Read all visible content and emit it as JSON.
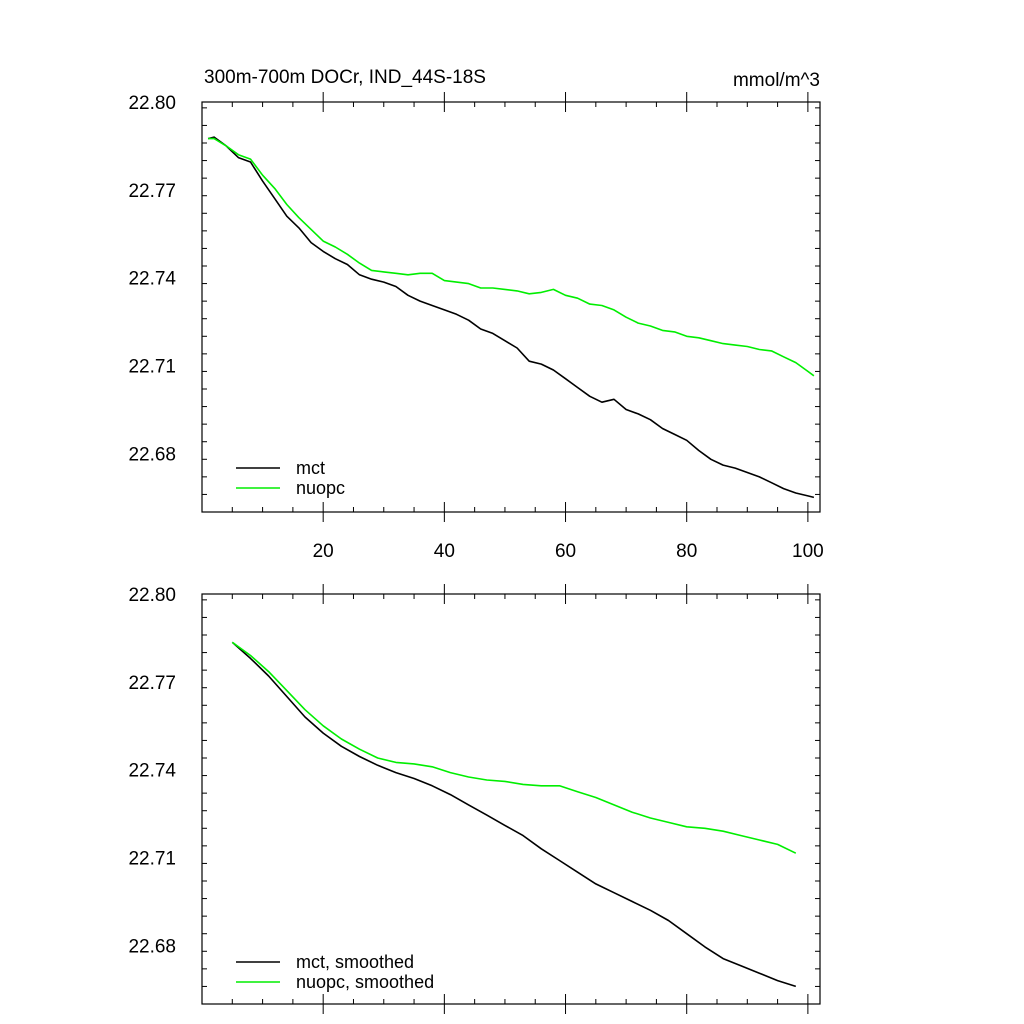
{
  "chart_data": [
    {
      "type": "line",
      "title": "300m-700m DOCr, IND_44S-18S",
      "units": "mmol/m^3",
      "xlim": [
        0,
        102
      ],
      "ylim": [
        22.66,
        22.8
      ],
      "xticks": [
        20,
        40,
        60,
        80,
        100
      ],
      "xtick_labels": [
        "20",
        "40",
        "60",
        "80",
        "100"
      ],
      "yticks": [
        22.68,
        22.71,
        22.74,
        22.77,
        22.8
      ],
      "ytick_labels": [
        "22.68",
        "22.71",
        "22.74",
        "22.77",
        "22.80"
      ],
      "legend_position": "bottom-left",
      "grid": false,
      "series": [
        {
          "name": "mct",
          "color": "#000000",
          "points": [
            [
              1,
              22.7875
            ],
            [
              2,
              22.788
            ],
            [
              4,
              22.785
            ],
            [
              6,
              22.781
            ],
            [
              8,
              22.7795
            ],
            [
              10,
              22.773
            ],
            [
              12,
              22.767
            ],
            [
              14,
              22.761
            ],
            [
              16,
              22.757
            ],
            [
              18,
              22.752
            ],
            [
              20,
              22.749
            ],
            [
              22,
              22.7465
            ],
            [
              24,
              22.7445
            ],
            [
              26,
              22.741
            ],
            [
              28,
              22.7395
            ],
            [
              30,
              22.7385
            ],
            [
              32,
              22.737
            ],
            [
              34,
              22.734
            ],
            [
              36,
              22.732
            ],
            [
              38,
              22.7305
            ],
            [
              40,
              22.729
            ],
            [
              42,
              22.7275
            ],
            [
              44,
              22.7255
            ],
            [
              46,
              22.7225
            ],
            [
              48,
              22.721
            ],
            [
              50,
              22.7185
            ],
            [
              52,
              22.716
            ],
            [
              54,
              22.7115
            ],
            [
              56,
              22.7105
            ],
            [
              58,
              22.7085
            ],
            [
              60,
              22.7055
            ],
            [
              62,
              22.7025
            ],
            [
              64,
              22.6995
            ],
            [
              66,
              22.6975
            ],
            [
              68,
              22.6985
            ],
            [
              70,
              22.695
            ],
            [
              72,
              22.6935
            ],
            [
              74,
              22.6915
            ],
            [
              76,
              22.6885
            ],
            [
              78,
              22.6865
            ],
            [
              80,
              22.6845
            ],
            [
              82,
              22.681
            ],
            [
              84,
              22.678
            ],
            [
              86,
              22.676
            ],
            [
              88,
              22.675
            ],
            [
              90,
              22.6735
            ],
            [
              92,
              22.672
            ],
            [
              94,
              22.67
            ],
            [
              96,
              22.668
            ],
            [
              98,
              22.6665
            ],
            [
              100,
              22.6655
            ],
            [
              101,
              22.665
            ]
          ]
        },
        {
          "name": "nuopc",
          "color": "#00ee00",
          "points": [
            [
              1,
              22.7875
            ],
            [
              2,
              22.7875
            ],
            [
              4,
              22.785
            ],
            [
              6,
              22.782
            ],
            [
              8,
              22.7805
            ],
            [
              10,
              22.775
            ],
            [
              12,
              22.7705
            ],
            [
              14,
              22.765
            ],
            [
              16,
              22.7605
            ],
            [
              18,
              22.7565
            ],
            [
              20,
              22.7525
            ],
            [
              22,
              22.7505
            ],
            [
              24,
              22.748
            ],
            [
              26,
              22.745
            ],
            [
              28,
              22.7425
            ],
            [
              30,
              22.742
            ],
            [
              32,
              22.7415
            ],
            [
              34,
              22.741
            ],
            [
              36,
              22.7415
            ],
            [
              38,
              22.7415
            ],
            [
              40,
              22.739
            ],
            [
              42,
              22.7385
            ],
            [
              44,
              22.738
            ],
            [
              46,
              22.7365
            ],
            [
              48,
              22.7365
            ],
            [
              50,
              22.736
            ],
            [
              52,
              22.7355
            ],
            [
              54,
              22.7345
            ],
            [
              56,
              22.735
            ],
            [
              58,
              22.736
            ],
            [
              60,
              22.734
            ],
            [
              62,
              22.733
            ],
            [
              64,
              22.731
            ],
            [
              66,
              22.7305
            ],
            [
              68,
              22.729
            ],
            [
              70,
              22.7265
            ],
            [
              72,
              22.7245
            ],
            [
              74,
              22.7235
            ],
            [
              76,
              22.722
            ],
            [
              78,
              22.7215
            ],
            [
              80,
              22.72
            ],
            [
              82,
              22.7195
            ],
            [
              84,
              22.7185
            ],
            [
              86,
              22.7175
            ],
            [
              88,
              22.717
            ],
            [
              90,
              22.7165
            ],
            [
              92,
              22.7155
            ],
            [
              94,
              22.715
            ],
            [
              96,
              22.713
            ],
            [
              98,
              22.711
            ],
            [
              100,
              22.708
            ],
            [
              101,
              22.7065
            ]
          ]
        }
      ]
    },
    {
      "type": "line",
      "xlim": [
        0,
        102
      ],
      "ylim": [
        22.66,
        22.8
      ],
      "xticks": [
        20,
        40,
        60,
        80,
        100
      ],
      "yticks": [
        22.68,
        22.71,
        22.74,
        22.77,
        22.8
      ],
      "ytick_labels": [
        "22.68",
        "22.71",
        "22.74",
        "22.77",
        "22.80"
      ],
      "legend_position": "bottom-left",
      "grid": false,
      "series": [
        {
          "name": "mct, smoothed",
          "color": "#000000",
          "points": [
            [
              5,
              22.7835
            ],
            [
              8,
              22.778
            ],
            [
              11,
              22.772
            ],
            [
              14,
              22.765
            ],
            [
              17,
              22.758
            ],
            [
              20,
              22.7525
            ],
            [
              23,
              22.748
            ],
            [
              26,
              22.7445
            ],
            [
              29,
              22.7415
            ],
            [
              32,
              22.739
            ],
            [
              35,
              22.737
            ],
            [
              38,
              22.7345
            ],
            [
              41,
              22.7315
            ],
            [
              44,
              22.728
            ],
            [
              47,
              22.7245
            ],
            [
              50,
              22.721
            ],
            [
              53,
              22.7175
            ],
            [
              56,
              22.713
            ],
            [
              59,
              22.709
            ],
            [
              62,
              22.705
            ],
            [
              65,
              22.701
            ],
            [
              68,
              22.698
            ],
            [
              71,
              22.695
            ],
            [
              74,
              22.692
            ],
            [
              77,
              22.6885
            ],
            [
              80,
              22.684
            ],
            [
              83,
              22.6795
            ],
            [
              86,
              22.6755
            ],
            [
              89,
              22.673
            ],
            [
              92,
              22.6705
            ],
            [
              95,
              22.668
            ],
            [
              98,
              22.666
            ]
          ]
        },
        {
          "name": "nuopc, smoothed",
          "color": "#00ee00",
          "points": [
            [
              5,
              22.7835
            ],
            [
              8,
              22.779
            ],
            [
              11,
              22.7735
            ],
            [
              14,
              22.767
            ],
            [
              17,
              22.7605
            ],
            [
              20,
              22.755
            ],
            [
              23,
              22.7505
            ],
            [
              26,
              22.747
            ],
            [
              29,
              22.744
            ],
            [
              32,
              22.7425
            ],
            [
              35,
              22.742
            ],
            [
              38,
              22.741
            ],
            [
              41,
              22.739
            ],
            [
              44,
              22.7375
            ],
            [
              47,
              22.7365
            ],
            [
              50,
              22.736
            ],
            [
              53,
              22.735
            ],
            [
              56,
              22.7345
            ],
            [
              59,
              22.7345
            ],
            [
              62,
              22.7325
            ],
            [
              65,
              22.7305
            ],
            [
              68,
              22.728
            ],
            [
              71,
              22.7255
            ],
            [
              74,
              22.7235
            ],
            [
              77,
              22.722
            ],
            [
              80,
              22.7205
            ],
            [
              83,
              22.72
            ],
            [
              86,
              22.719
            ],
            [
              89,
              22.7175
            ],
            [
              92,
              22.716
            ],
            [
              95,
              22.7145
            ],
            [
              98,
              22.7115
            ]
          ]
        }
      ]
    }
  ]
}
